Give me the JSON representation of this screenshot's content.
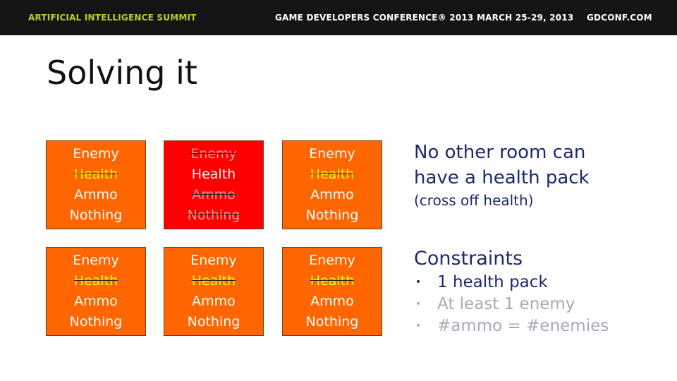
{
  "header": {
    "left": "ARTIFICIAL INTELLIGENCE SUMMIT",
    "conference": "GAME DEVELOPERS CONFERENCE® 2013",
    "dates": "MARCH 25-29, 2013",
    "site": "GDCONF.COM",
    "accent_color": "#b5d31e"
  },
  "slide": {
    "title": "Solving it"
  },
  "rooms": [
    [
      {
        "options": [
          {
            "label": "Enemy",
            "crossed": false
          },
          {
            "label": "Health",
            "crossed": true
          },
          {
            "label": "Ammo",
            "crossed": false
          },
          {
            "label": "Nothing",
            "crossed": false
          }
        ]
      },
      {
        "highlight": true,
        "options": [
          {
            "label": "Enemy",
            "crossed": true
          },
          {
            "label": "Health",
            "crossed": false
          },
          {
            "label": "Ammo",
            "crossed": true
          },
          {
            "label": "Nothing",
            "crossed": true
          }
        ]
      },
      {
        "options": [
          {
            "label": "Enemy",
            "crossed": false
          },
          {
            "label": "Health",
            "crossed": true
          },
          {
            "label": "Ammo",
            "crossed": false
          },
          {
            "label": "Nothing",
            "crossed": false
          }
        ]
      }
    ],
    [
      {
        "options": [
          {
            "label": "Enemy",
            "crossed": false
          },
          {
            "label": "Health",
            "crossed": true
          },
          {
            "label": "Ammo",
            "crossed": false
          },
          {
            "label": "Nothing",
            "crossed": false
          }
        ]
      },
      {
        "options": [
          {
            "label": "Enemy",
            "crossed": false
          },
          {
            "label": "Health",
            "crossed": true
          },
          {
            "label": "Ammo",
            "crossed": false
          },
          {
            "label": "Nothing",
            "crossed": false
          }
        ]
      },
      {
        "options": [
          {
            "label": "Enemy",
            "crossed": false
          },
          {
            "label": "Health",
            "crossed": true
          },
          {
            "label": "Ammo",
            "crossed": false
          },
          {
            "label": "Nothing",
            "crossed": false
          }
        ]
      }
    ]
  ],
  "colors": {
    "room": "#ff6600",
    "room_highlight": "#ff0000",
    "text_dark": "#1a2b6d",
    "text_muted": "#a9a9b8"
  },
  "note": {
    "line1": "No other room can",
    "line2": "have a health pack",
    "sub": "(cross off health)"
  },
  "constraints": {
    "heading": "Constraints",
    "bullet": "•",
    "items": [
      {
        "text": "1 health pack",
        "active": true
      },
      {
        "text": "At least 1 enemy",
        "active": false
      },
      {
        "text": "#ammo = #enemies",
        "active": false
      }
    ]
  }
}
